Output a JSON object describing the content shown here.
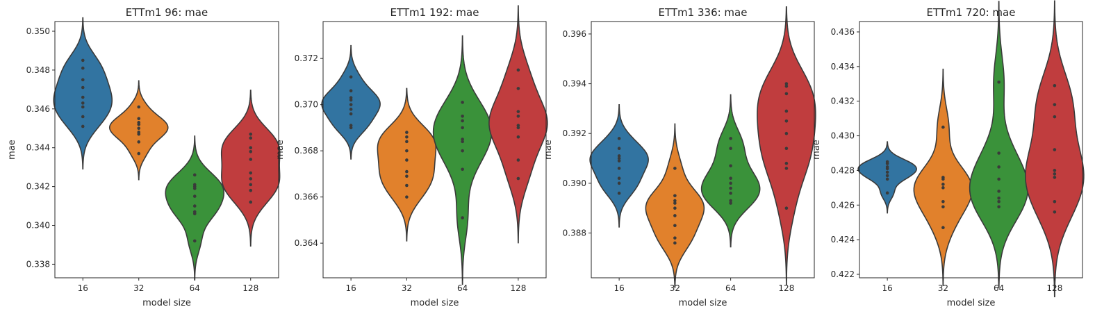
{
  "chart_data": [
    {
      "type": "violin",
      "title": "ETTm1 96: mae",
      "xlabel": "model size",
      "ylabel": "mae",
      "categories": [
        "16",
        "32",
        "64",
        "128"
      ],
      "colors": [
        "#3274a1",
        "#e1812c",
        "#3a923a",
        "#c03d3e"
      ],
      "ylim": [
        0.3373,
        0.3505
      ],
      "yticks": [
        0.338,
        0.34,
        0.342,
        0.344,
        0.346,
        0.348,
        0.35
      ],
      "ytick_labels": [
        "0.338",
        "0.340",
        "0.342",
        "0.344",
        "0.346",
        "0.348",
        "0.350"
      ],
      "series": [
        {
          "name": "16",
          "values": [
            0.3451,
            0.3456,
            0.3461,
            0.3463,
            0.3466,
            0.3471,
            0.3475,
            0.3481,
            0.3485
          ]
        },
        {
          "name": "32",
          "values": [
            0.3437,
            0.3443,
            0.3447,
            0.3448,
            0.345,
            0.3452,
            0.3453,
            0.3455,
            0.3461
          ]
        },
        {
          "name": "64",
          "values": [
            0.3392,
            0.3406,
            0.3407,
            0.341,
            0.3415,
            0.3419,
            0.342,
            0.3421,
            0.3426
          ]
        },
        {
          "name": "128",
          "values": [
            0.3412,
            0.3418,
            0.3421,
            0.3424,
            0.3427,
            0.3434,
            0.3438,
            0.344,
            0.3445,
            0.3447
          ]
        }
      ]
    },
    {
      "type": "violin",
      "title": "ETTm1 192: mae",
      "xlabel": "model size",
      "ylabel": "mae",
      "categories": [
        "16",
        "32",
        "64",
        "128"
      ],
      "colors": [
        "#3274a1",
        "#e1812c",
        "#3a923a",
        "#c03d3e"
      ],
      "ylim": [
        0.3625,
        0.3736
      ],
      "yticks": [
        0.364,
        0.366,
        0.368,
        0.37,
        0.372
      ],
      "ytick_labels": [
        "0.364",
        "0.366",
        "0.368",
        "0.370",
        "0.372"
      ],
      "series": [
        {
          "name": "16",
          "values": [
            0.369,
            0.3691,
            0.3696,
            0.3698,
            0.37,
            0.3702,
            0.3703,
            0.3706,
            0.3712
          ]
        },
        {
          "name": "32",
          "values": [
            0.366,
            0.3665,
            0.3669,
            0.3671,
            0.3676,
            0.368,
            0.3684,
            0.3686,
            0.3688
          ]
        },
        {
          "name": "64",
          "values": [
            0.3651,
            0.3672,
            0.368,
            0.3684,
            0.3685,
            0.369,
            0.3693,
            0.3695,
            0.3701
          ]
        },
        {
          "name": "128",
          "values": [
            0.3668,
            0.3676,
            0.3686,
            0.369,
            0.3691,
            0.3695,
            0.3697,
            0.3707,
            0.3715
          ]
        }
      ]
    },
    {
      "type": "violin",
      "title": "ETTm1 336: mae",
      "xlabel": "model size",
      "ylabel": "mae",
      "categories": [
        "16",
        "32",
        "64",
        "128"
      ],
      "colors": [
        "#3274a1",
        "#e1812c",
        "#3a923a",
        "#c03d3e"
      ],
      "ylim": [
        0.3862,
        0.3965
      ],
      "yticks": [
        0.388,
        0.39,
        0.392,
        0.394,
        0.396
      ],
      "ytick_labels": [
        "0.388",
        "0.390",
        "0.392",
        "0.394",
        "0.396"
      ],
      "series": [
        {
          "name": "16",
          "values": [
            0.3896,
            0.39,
            0.3902,
            0.3906,
            0.3909,
            0.391,
            0.3911,
            0.3914,
            0.3918
          ]
        },
        {
          "name": "32",
          "values": [
            0.3876,
            0.3878,
            0.3883,
            0.3887,
            0.389,
            0.3892,
            0.3893,
            0.3895,
            0.3906
          ]
        },
        {
          "name": "64",
          "values": [
            0.3892,
            0.3893,
            0.3896,
            0.3898,
            0.39,
            0.3902,
            0.3907,
            0.3914,
            0.3918
          ]
        },
        {
          "name": "128",
          "values": [
            0.389,
            0.3906,
            0.3908,
            0.3914,
            0.392,
            0.3925,
            0.3929,
            0.3936,
            0.3939,
            0.394
          ]
        }
      ]
    },
    {
      "type": "violin",
      "title": "ETTm1 720: mae",
      "xlabel": "model size",
      "ylabel": "mae",
      "categories": [
        "16",
        "32",
        "64",
        "128"
      ],
      "colors": [
        "#3274a1",
        "#e1812c",
        "#3a923a",
        "#c03d3e"
      ],
      "ylim": [
        0.4218,
        0.4366
      ],
      "yticks": [
        0.422,
        0.424,
        0.426,
        0.428,
        0.43,
        0.432,
        0.434,
        0.436
      ],
      "ytick_labels": [
        "0.422",
        "0.424",
        "0.426",
        "0.428",
        "0.430",
        "0.432",
        "0.434",
        "0.436"
      ],
      "series": [
        {
          "name": "16",
          "values": [
            0.4267,
            0.4275,
            0.4277,
            0.4279,
            0.4281,
            0.4282,
            0.4284,
            0.4285
          ]
        },
        {
          "name": "32",
          "values": [
            0.4247,
            0.4259,
            0.4262,
            0.427,
            0.4272,
            0.4275,
            0.4276,
            0.4305
          ]
        },
        {
          "name": "64",
          "values": [
            0.4259,
            0.4262,
            0.4264,
            0.4268,
            0.4275,
            0.4282,
            0.429,
            0.4331
          ]
        },
        {
          "name": "128",
          "values": [
            0.4256,
            0.4262,
            0.4276,
            0.4278,
            0.428,
            0.4292,
            0.4311,
            0.4318,
            0.4329
          ]
        }
      ]
    }
  ]
}
